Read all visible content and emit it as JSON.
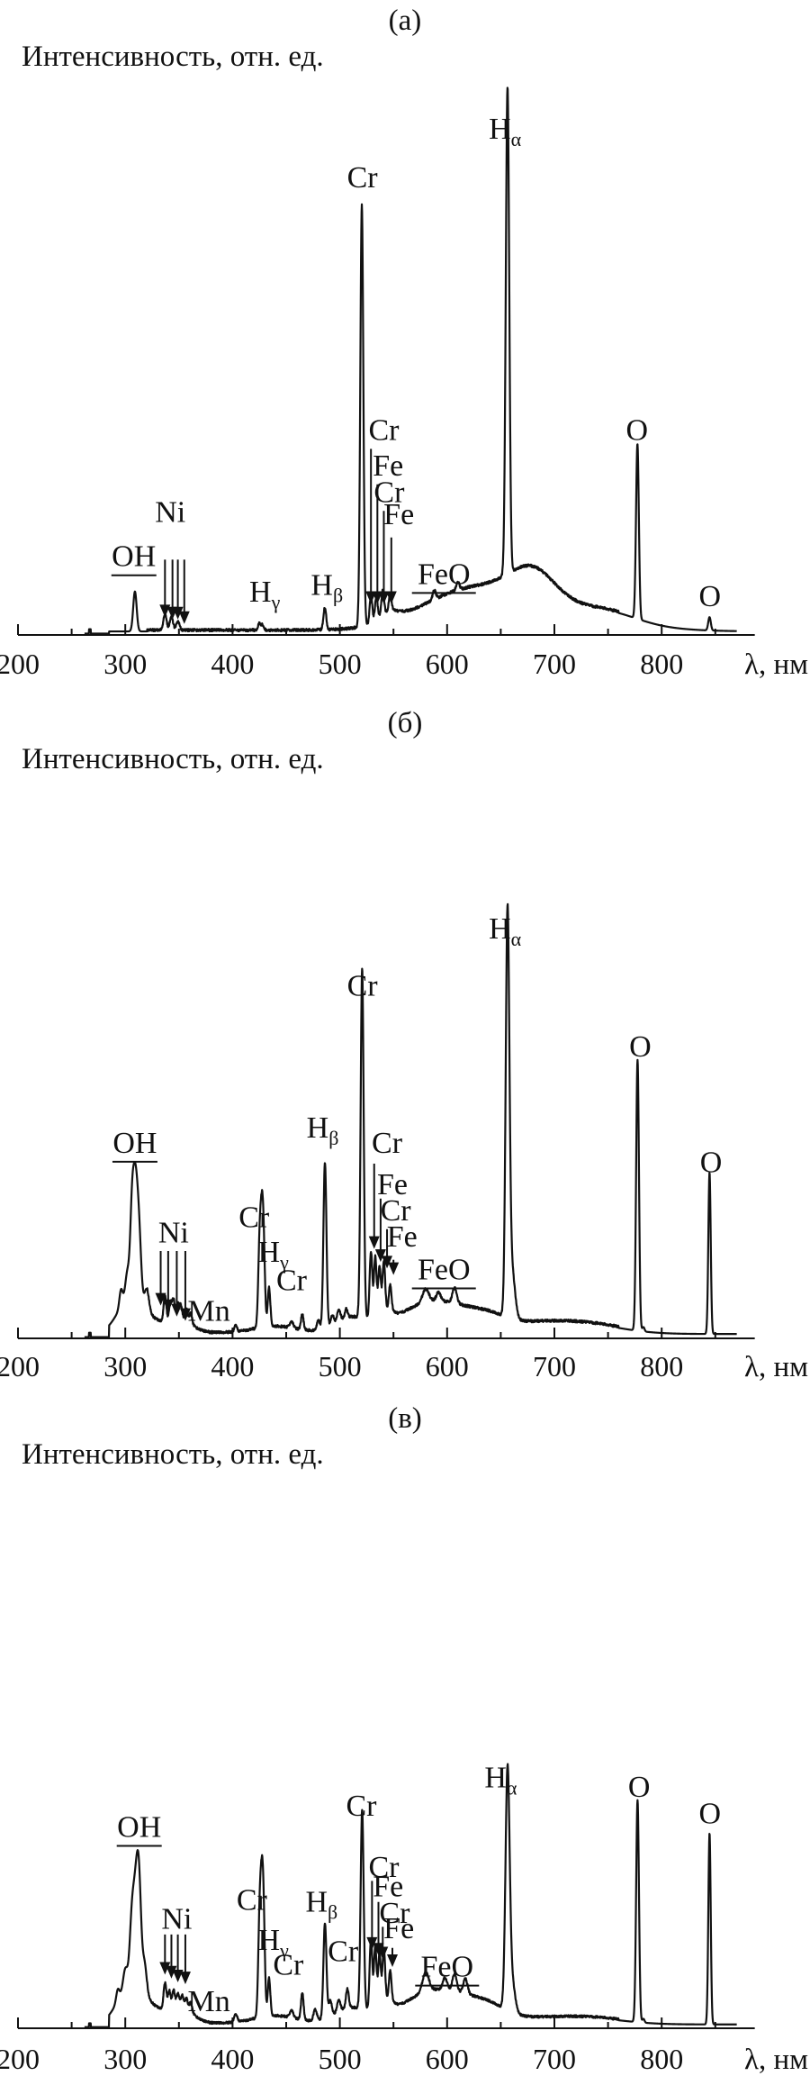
{
  "chart_data": [
    {
      "type": "line",
      "panel_label": "(а)",
      "ylabel": "Интенсивность, отн. ед.",
      "xlabel": "λ, нм",
      "xlim": [
        200,
        870
      ],
      "xticks": [
        200,
        300,
        400,
        500,
        600,
        700,
        800
      ],
      "ylim": [
        0,
        1
      ],
      "grid": false,
      "annotations": [
        {
          "text": "OH",
          "x": 308,
          "y": 0.155,
          "underline": true
        },
        {
          "text": "Ni",
          "x": 342,
          "y": 0.255
        },
        {
          "text": "H",
          "sub": "γ",
          "x": 430,
          "y": 0.075
        },
        {
          "text": "H",
          "sub": "β",
          "x": 488,
          "y": 0.09
        },
        {
          "text": "Cr",
          "x": 521,
          "y": 1.01
        },
        {
          "text": "Cr",
          "x": 541,
          "y": 0.44
        },
        {
          "text": "Fe",
          "x": 545,
          "y": 0.36
        },
        {
          "text": "Cr",
          "x": 546,
          "y": 0.3
        },
        {
          "text": "Fe",
          "x": 555,
          "y": 0.25
        },
        {
          "text": "FeO",
          "x": 597,
          "y": 0.115,
          "underline": true
        },
        {
          "text": "H",
          "sub": "α",
          "x": 654,
          "y": 1.12
        },
        {
          "text": "O",
          "x": 777,
          "y": 0.44
        },
        {
          "text": "O",
          "x": 845,
          "y": 0.065
        }
      ],
      "arrows": [
        {
          "x": 337,
          "y1": 0.17,
          "y2": 0.04
        },
        {
          "x": 344,
          "y1": 0.17,
          "y2": 0.035
        },
        {
          "x": 349,
          "y1": 0.17,
          "y2": 0.035
        },
        {
          "x": 355,
          "y1": 0.17,
          "y2": 0.025
        },
        {
          "x": 529,
          "y1": 0.42,
          "y2": 0.07
        },
        {
          "x": 535,
          "y1": 0.34,
          "y2": 0.07
        },
        {
          "x": 541,
          "y1": 0.28,
          "y2": 0.07
        },
        {
          "x": 548,
          "y1": 0.22,
          "y2": 0.07
        }
      ],
      "peaks": [
        {
          "x": 309,
          "h": 0.09,
          "w": 1.6
        },
        {
          "x": 337,
          "h": 0.035,
          "w": 1.5
        },
        {
          "x": 343,
          "h": 0.03,
          "w": 1.5
        },
        {
          "x": 349,
          "h": 0.02,
          "w": 1.5
        },
        {
          "x": 425,
          "h": 0.015,
          "w": 1.2
        },
        {
          "x": 428,
          "h": 0.012,
          "w": 1.2
        },
        {
          "x": 486,
          "h": 0.05,
          "w": 1.3
        },
        {
          "x": 520.5,
          "h": 0.95,
          "w": 1.4
        },
        {
          "x": 529,
          "h": 0.06,
          "w": 1.2
        },
        {
          "x": 534,
          "h": 0.05,
          "w": 1.2
        },
        {
          "x": 540,
          "h": 0.055,
          "w": 1.2
        },
        {
          "x": 547,
          "h": 0.04,
          "w": 1.2
        },
        {
          "x": 588,
          "h": 0.02,
          "w": 1.5
        },
        {
          "x": 610,
          "h": 0.018,
          "w": 1.5
        },
        {
          "x": 656.3,
          "h": 1.1,
          "w": 1.6
        },
        {
          "x": 777.4,
          "h": 0.395,
          "w": 1.3
        },
        {
          "x": 844.6,
          "h": 0.03,
          "w": 1.2
        }
      ],
      "humps": [
        {
          "x": 545,
          "h": 0.02,
          "w": 10
        },
        {
          "x": 600,
          "h": 0.045,
          "w": 40
        },
        {
          "x": 650,
          "h": 0.05,
          "w": 45
        },
        {
          "x": 680,
          "h": 0.06,
          "w": 20
        },
        {
          "x": 700,
          "h": 0.04,
          "w": 60
        },
        {
          "x": 755,
          "h": 0.015,
          "w": 25
        }
      ]
    },
    {
      "type": "line",
      "panel_label": "(б)",
      "ylabel": "Интенсивность, отн. ед.",
      "xlabel": "λ, нм",
      "xlim": [
        200,
        870
      ],
      "xticks": [
        200,
        300,
        400,
        500,
        600,
        700,
        800
      ],
      "ylim": [
        0,
        1
      ],
      "grid": false,
      "annotations": [
        {
          "text": "OH",
          "x": 309,
          "y": 0.425,
          "underline": true
        },
        {
          "text": "Ni",
          "x": 345,
          "y": 0.22
        },
        {
          "text": "Mn",
          "x": 378,
          "y": 0.04
        },
        {
          "text": "Cr",
          "x": 420,
          "y": 0.255
        },
        {
          "text": "H",
          "sub": "γ",
          "x": 438,
          "y": 0.175
        },
        {
          "text": "Cr",
          "x": 455,
          "y": 0.11
        },
        {
          "text": "H",
          "sub": "β",
          "x": 484,
          "y": 0.46
        },
        {
          "text": "Cr",
          "x": 521,
          "y": 0.785
        },
        {
          "text": "Cr",
          "x": 544,
          "y": 0.425
        },
        {
          "text": "Fe",
          "x": 549,
          "y": 0.33
        },
        {
          "text": "Cr",
          "x": 552,
          "y": 0.27
        },
        {
          "text": "Fe",
          "x": 558,
          "y": 0.21
        },
        {
          "text": "FeO",
          "x": 597,
          "y": 0.135,
          "underline": true
        },
        {
          "text": "H",
          "sub": "α",
          "x": 654,
          "y": 0.915
        },
        {
          "text": "O",
          "x": 780,
          "y": 0.645
        },
        {
          "text": "O",
          "x": 846,
          "y": 0.38
        }
      ],
      "arrows": [
        {
          "x": 333,
          "y1": 0.2,
          "y2": 0.075
        },
        {
          "x": 340,
          "y1": 0.2,
          "y2": 0.06
        },
        {
          "x": 348,
          "y1": 0.2,
          "y2": 0.05
        },
        {
          "x": 356,
          "y1": 0.2,
          "y2": 0.04
        },
        {
          "x": 532,
          "y1": 0.4,
          "y2": 0.205
        },
        {
          "x": 538,
          "y1": 0.32,
          "y2": 0.175
        },
        {
          "x": 544,
          "y1": 0.25,
          "y2": 0.16
        },
        {
          "x": 550,
          "y1": 0.18,
          "y2": 0.145
        }
      ],
      "peaks": [
        {
          "x": 296,
          "h": 0.04,
          "w": 1.5
        },
        {
          "x": 302,
          "h": 0.06,
          "w": 2
        },
        {
          "x": 306,
          "h": 0.1,
          "w": 1.5
        },
        {
          "x": 309,
          "h": 0.28,
          "w": 2.5
        },
        {
          "x": 313,
          "h": 0.12,
          "w": 2
        },
        {
          "x": 320,
          "h": 0.05,
          "w": 2
        },
        {
          "x": 337,
          "h": 0.06,
          "w": 1.3
        },
        {
          "x": 342,
          "h": 0.045,
          "w": 1.3
        },
        {
          "x": 345,
          "h": 0.05,
          "w": 1.3
        },
        {
          "x": 349,
          "h": 0.04,
          "w": 1.3
        },
        {
          "x": 352,
          "h": 0.035,
          "w": 1.3
        },
        {
          "x": 357,
          "h": 0.03,
          "w": 1.3
        },
        {
          "x": 361,
          "h": 0.025,
          "w": 1.3
        },
        {
          "x": 403,
          "h": 0.015,
          "w": 1.2
        },
        {
          "x": 425.4,
          "h": 0.2,
          "w": 1.4
        },
        {
          "x": 427.5,
          "h": 0.17,
          "w": 1.3
        },
        {
          "x": 429,
          "h": 0.15,
          "w": 1.3
        },
        {
          "x": 434,
          "h": 0.09,
          "w": 1.2
        },
        {
          "x": 455,
          "h": 0.015,
          "w": 1.5
        },
        {
          "x": 465,
          "h": 0.035,
          "w": 1.2
        },
        {
          "x": 480,
          "h": 0.02,
          "w": 1.5
        },
        {
          "x": 486.1,
          "h": 0.38,
          "w": 1.4
        },
        {
          "x": 493,
          "h": 0.02,
          "w": 1.5
        },
        {
          "x": 499,
          "h": 0.025,
          "w": 1.5
        },
        {
          "x": 506,
          "h": 0.02,
          "w": 1.2
        },
        {
          "x": 520.8,
          "h": 0.8,
          "w": 1.4
        },
        {
          "x": 529,
          "h": 0.15,
          "w": 1.2
        },
        {
          "x": 533,
          "h": 0.13,
          "w": 1.2
        },
        {
          "x": 537,
          "h": 0.1,
          "w": 1.2
        },
        {
          "x": 541,
          "h": 0.11,
          "w": 1.2
        },
        {
          "x": 547,
          "h": 0.06,
          "w": 1.2
        },
        {
          "x": 580,
          "h": 0.03,
          "w": 3
        },
        {
          "x": 592,
          "h": 0.02,
          "w": 2
        },
        {
          "x": 607,
          "h": 0.035,
          "w": 2
        },
        {
          "x": 656.3,
          "h": 0.89,
          "w": 1.7
        },
        {
          "x": 660,
          "h": 0.12,
          "w": 3
        },
        {
          "x": 777.5,
          "h": 0.62,
          "w": 1.3
        },
        {
          "x": 783,
          "h": 0.01,
          "w": 1
        },
        {
          "x": 844.6,
          "h": 0.37,
          "w": 1.1
        }
      ],
      "humps": [
        {
          "x": 305,
          "h": 0.08,
          "w": 12
        },
        {
          "x": 330,
          "h": 0.02,
          "w": 15
        },
        {
          "x": 355,
          "h": 0.02,
          "w": 10
        },
        {
          "x": 440,
          "h": 0.015,
          "w": 20
        },
        {
          "x": 510,
          "h": 0.035,
          "w": 15
        },
        {
          "x": 540,
          "h": 0.03,
          "w": 8
        },
        {
          "x": 575,
          "h": 0.05,
          "w": 25
        },
        {
          "x": 610,
          "h": 0.04,
          "w": 25
        },
        {
          "x": 640,
          "h": 0.015,
          "w": 15
        },
        {
          "x": 690,
          "h": 0.025,
          "w": 45
        },
        {
          "x": 740,
          "h": 0.008,
          "w": 30
        }
      ]
    },
    {
      "type": "line",
      "panel_label": "(в)",
      "ylabel": "Интенсивность, отн. ед.",
      "xlabel": "λ, нм",
      "xlim": [
        200,
        870
      ],
      "xticks": [
        200,
        300,
        400,
        500,
        600,
        700,
        800
      ],
      "ylim": [
        0,
        1
      ],
      "grid": false,
      "annotations": [
        {
          "text": "OH",
          "x": 313,
          "y": 0.5,
          "underline": true
        },
        {
          "text": "Ni",
          "x": 348,
          "y": 0.26
        },
        {
          "text": "Mn",
          "x": 378,
          "y": 0.045
        },
        {
          "text": "Cr",
          "x": 418,
          "y": 0.31
        },
        {
          "text": "H",
          "sub": "γ",
          "x": 438,
          "y": 0.205
        },
        {
          "text": "Cr",
          "x": 452,
          "y": 0.14
        },
        {
          "text": "H",
          "sub": "β",
          "x": 483,
          "y": 0.305
        },
        {
          "text": "Cr",
          "x": 503,
          "y": 0.175
        },
        {
          "text": "Cr",
          "x": 520,
          "y": 0.555
        },
        {
          "text": "Cr",
          "x": 541,
          "y": 0.395
        },
        {
          "text": "Fe",
          "x": 545,
          "y": 0.345
        },
        {
          "text": "Cr",
          "x": 551,
          "y": 0.275
        },
        {
          "text": "Fe",
          "x": 555,
          "y": 0.235
        },
        {
          "text": "FeO",
          "x": 600,
          "y": 0.135,
          "underline": true
        },
        {
          "text": "H",
          "sub": "α",
          "x": 650,
          "y": 0.63
        },
        {
          "text": "O",
          "x": 779,
          "y": 0.605
        },
        {
          "text": "O",
          "x": 845,
          "y": 0.535
        }
      ],
      "arrows": [
        {
          "x": 337,
          "y1": 0.245,
          "y2": 0.14
        },
        {
          "x": 343,
          "y1": 0.245,
          "y2": 0.13
        },
        {
          "x": 349,
          "y1": 0.245,
          "y2": 0.12
        },
        {
          "x": 356,
          "y1": 0.245,
          "y2": 0.115
        },
        {
          "x": 530,
          "y1": 0.385,
          "y2": 0.205
        },
        {
          "x": 536,
          "y1": 0.33,
          "y2": 0.19
        },
        {
          "x": 540,
          "y1": 0.265,
          "y2": 0.18
        },
        {
          "x": 549,
          "y1": 0.21,
          "y2": 0.16
        }
      ],
      "peaks": [
        {
          "x": 293,
          "h": 0.03,
          "w": 1.5
        },
        {
          "x": 300,
          "h": 0.05,
          "w": 2
        },
        {
          "x": 306,
          "h": 0.14,
          "w": 2
        },
        {
          "x": 310,
          "h": 0.24,
          "w": 2.5
        },
        {
          "x": 313,
          "h": 0.2,
          "w": 2
        },
        {
          "x": 318,
          "h": 0.08,
          "w": 2
        },
        {
          "x": 337,
          "h": 0.07,
          "w": 1.3
        },
        {
          "x": 341,
          "h": 0.05,
          "w": 1.3
        },
        {
          "x": 345,
          "h": 0.05,
          "w": 1.3
        },
        {
          "x": 349,
          "h": 0.04,
          "w": 1.3
        },
        {
          "x": 353,
          "h": 0.035,
          "w": 1.3
        },
        {
          "x": 357,
          "h": 0.03,
          "w": 1.3
        },
        {
          "x": 361,
          "h": 0.025,
          "w": 1.3
        },
        {
          "x": 403,
          "h": 0.02,
          "w": 1.5
        },
        {
          "x": 425.4,
          "h": 0.27,
          "w": 1.4
        },
        {
          "x": 427.5,
          "h": 0.23,
          "w": 1.3
        },
        {
          "x": 429,
          "h": 0.2,
          "w": 1.3
        },
        {
          "x": 434,
          "h": 0.1,
          "w": 1.2
        },
        {
          "x": 455,
          "h": 0.02,
          "w": 1.5
        },
        {
          "x": 465,
          "h": 0.07,
          "w": 1.2
        },
        {
          "x": 477,
          "h": 0.03,
          "w": 1.5
        },
        {
          "x": 486.1,
          "h": 0.25,
          "w": 1.4
        },
        {
          "x": 491,
          "h": 0.04,
          "w": 1.5
        },
        {
          "x": 499,
          "h": 0.03,
          "w": 1.5
        },
        {
          "x": 507,
          "h": 0.05,
          "w": 1.3
        },
        {
          "x": 520.8,
          "h": 0.52,
          "w": 1.4
        },
        {
          "x": 529,
          "h": 0.18,
          "w": 1.2
        },
        {
          "x": 533,
          "h": 0.15,
          "w": 1.2
        },
        {
          "x": 537,
          "h": 0.12,
          "w": 1.2
        },
        {
          "x": 541,
          "h": 0.13,
          "w": 1.2
        },
        {
          "x": 547,
          "h": 0.08,
          "w": 1.2
        },
        {
          "x": 580,
          "h": 0.05,
          "w": 3
        },
        {
          "x": 598,
          "h": 0.03,
          "w": 2
        },
        {
          "x": 607,
          "h": 0.045,
          "w": 2
        },
        {
          "x": 617,
          "h": 0.04,
          "w": 2
        },
        {
          "x": 656.3,
          "h": 0.6,
          "w": 1.9
        },
        {
          "x": 660,
          "h": 0.09,
          "w": 3
        },
        {
          "x": 777.5,
          "h": 0.58,
          "w": 1.3
        },
        {
          "x": 783,
          "h": 0.01,
          "w": 1
        },
        {
          "x": 844.6,
          "h": 0.5,
          "w": 1.1
        }
      ],
      "humps": [
        {
          "x": 305,
          "h": 0.1,
          "w": 12
        },
        {
          "x": 330,
          "h": 0.03,
          "w": 15
        },
        {
          "x": 355,
          "h": 0.03,
          "w": 10
        },
        {
          "x": 440,
          "h": 0.02,
          "w": 20
        },
        {
          "x": 510,
          "h": 0.04,
          "w": 15
        },
        {
          "x": 540,
          "h": 0.04,
          "w": 8
        },
        {
          "x": 578,
          "h": 0.06,
          "w": 25
        },
        {
          "x": 612,
          "h": 0.05,
          "w": 25
        },
        {
          "x": 640,
          "h": 0.02,
          "w": 15
        },
        {
          "x": 690,
          "h": 0.015,
          "w": 45
        },
        {
          "x": 740,
          "h": 0.008,
          "w": 30
        }
      ]
    }
  ]
}
